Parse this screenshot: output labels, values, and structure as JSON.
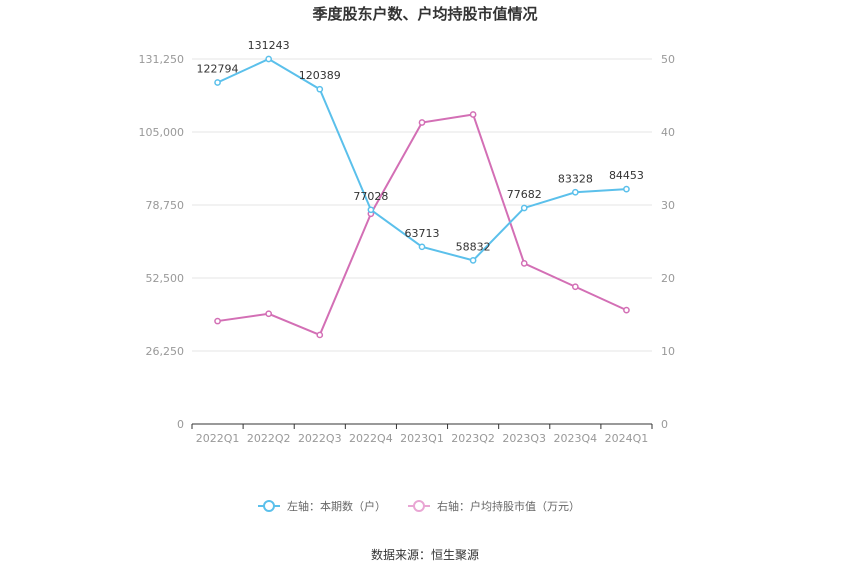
{
  "chart_data": {
    "type": "line",
    "title": "季度股东户数、户均持股市值情况",
    "categories": [
      "2022Q1",
      "2022Q2",
      "2022Q3",
      "2022Q4",
      "2023Q1",
      "2023Q2",
      "2023Q3",
      "2023Q4",
      "2024Q1"
    ],
    "y_left": {
      "min": 0,
      "max": 131250,
      "ticks": [
        "0",
        "26,250",
        "52,500",
        "78,750",
        "105,000",
        "131,250"
      ]
    },
    "y_right": {
      "min": 0,
      "max": 50,
      "ticks": [
        "0",
        "10",
        "20",
        "30",
        "40",
        "50"
      ]
    },
    "series": [
      {
        "name": "左轴：本期数（户）",
        "axis": "left",
        "color": "#5bc0eb",
        "values": [
          122794,
          131243,
          120389,
          77028,
          63713,
          58832,
          77682,
          83328,
          84453
        ],
        "labels": [
          "122794",
          "131243",
          "120389",
          "77028",
          "63713",
          "58832",
          "77682",
          "83328",
          "84453"
        ]
      },
      {
        "name": "右轴：户均持股市值（万元）",
        "axis": "right",
        "color": "#d36fb5",
        "values": [
          14.1,
          15.1,
          12.2,
          28.8,
          41.3,
          42.4,
          22.0,
          18.8,
          15.6
        ]
      }
    ],
    "grid": true,
    "legend_position": "bottom"
  },
  "source": "数据来源：恒生聚源"
}
